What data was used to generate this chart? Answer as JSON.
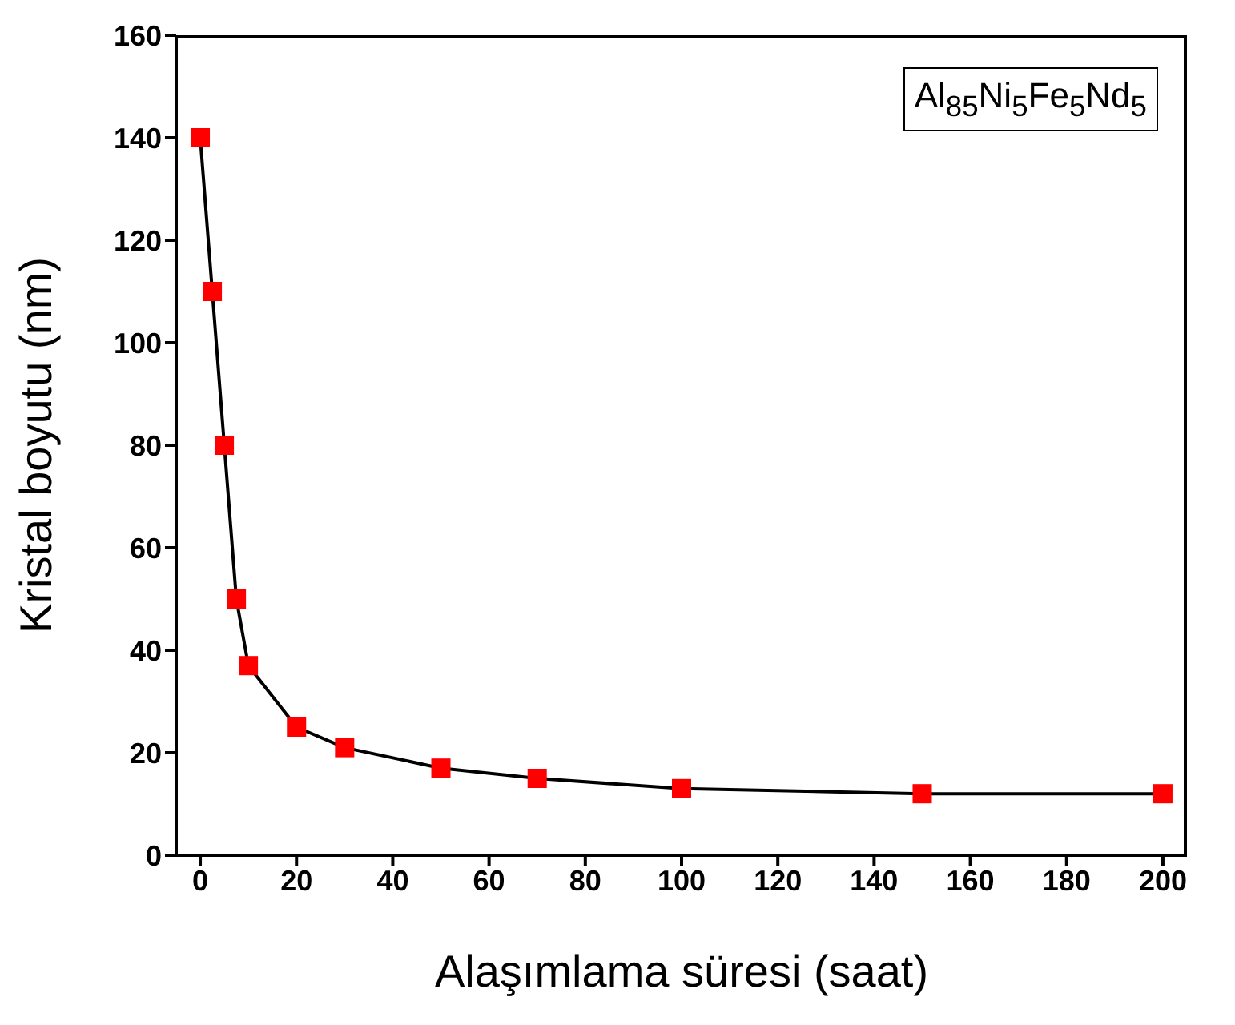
{
  "chart_data": {
    "type": "line",
    "xlabel": "Alaşımlama süresi (saat)",
    "ylabel": "Kristal boyutu (nm)",
    "annotations": [
      "Al$_{85}$Ni$_{5}$Fe$_{5}$Nd$_{5}$"
    ],
    "x": [
      0,
      2.5,
      5,
      7.5,
      10,
      20,
      30,
      50,
      70,
      100,
      150,
      200
    ],
    "series": [
      {
        "color": "#ff0000",
        "values": [
          140,
          110,
          80,
          50,
          37,
          25,
          21,
          17,
          15,
          13,
          12,
          12
        ]
      }
    ],
    "xlim": [
      -5,
      205
    ],
    "xticks": [
      0,
      20,
      40,
      60,
      80,
      100,
      120,
      140,
      160,
      180,
      200
    ],
    "ylim": [
      0,
      160
    ],
    "yticks": [
      0,
      20,
      40,
      60,
      80,
      100,
      120,
      140,
      160
    ],
    "grid": false,
    "marker": "square",
    "line_style": "solid"
  }
}
